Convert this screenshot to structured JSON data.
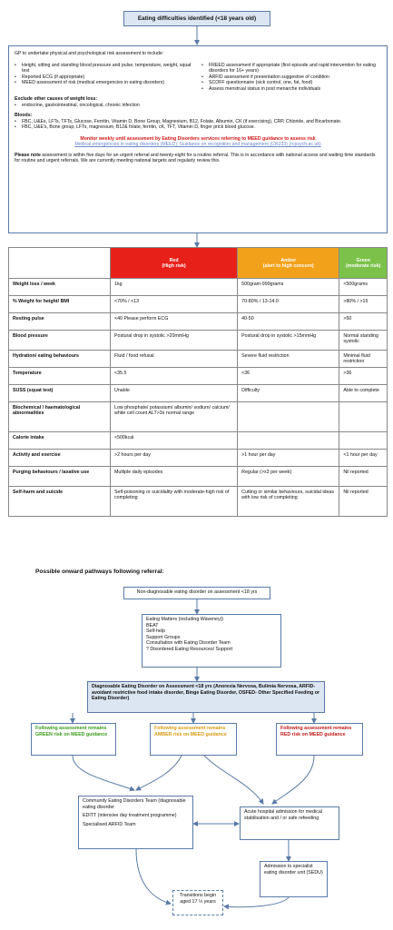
{
  "title": "Eating difficulties identified (<18 years old)",
  "gp": {
    "intro": "GP to undertake physical and psychological risk assessment to include:",
    "left_items": [
      "Height, sitting and standing blood pressure and pulse, temperature, weight, squat test",
      "Reported ECG (if appropriate)",
      "MEED assessment of risk (medical emergencies in eating disorders)"
    ],
    "right_items": [
      "FREED assessment if appropriate (first episode and rapid intervention for eating disorders for 16+ years)",
      "ARFID assessment if presentation suggestive of condition",
      "SCOFF questionnaire (sick control, one, fat, food)",
      "Assess menstrual status in post menarche individuals"
    ],
    "exclude_title": "Exclude other causes of weight loss:",
    "exclude_item": "endocrine, gastrointestinal, oncological, chronic infection",
    "bloods_title": "Bloods:",
    "bloods_item1": "FBC, U&Es, LFTs, TFTs, Glucose, Ferritin, Vitamin D, Bone Group, Magnesium, B12, Folate, Albumin, CK (if exercising), CRP, Chloride, and Bicarbonate.",
    "bloods_item2": "FBC, U&E's, Bone group, LFTs, magnesium, B12& folate, ferritin, cK, TFT, Vitamin D, finger prick blood glucose.",
    "monitor": "Monitor weekly until assessment by Eating Disorders services referring to MEED guidance to assess risk",
    "monitor_link": "Medical emergencies in eating disorders (MEED): Guidance on recognition and management (CR233) (rcpsych.ac.uk)",
    "note_bold": "Please note",
    "note_text": " assessment is within five days for an urgent referral and twenty-eight for a routine referral. This is in accordance with national access and waiting time standards for routine and urgent referrals. We are currently meeting national targets and regularly review this."
  },
  "table": {
    "headers": [
      "Red\n(High risk)",
      "Amber\n(alert to high concern)",
      "Green\n(moderate risk)"
    ],
    "red_title": "Red",
    "red_sub": "(High risk)",
    "amber_title": "Amber",
    "amber_sub": "(alert to high concern)",
    "green_title": "Green",
    "green_sub": "(moderate risk)",
    "rows": [
      {
        "label": "Weight loss / week",
        "red": "1kg",
        "amber": "500gram-999grams",
        "green": "<500grams"
      },
      {
        "label": "% Weight for height/ BMI",
        "red": "<70% / <13",
        "amber": "70-80% / 13-14.0",
        "green": ">80% / >15"
      },
      {
        "label": "Resting pulse",
        "red": "<40 Please perform ECG",
        "amber": "40-50",
        "green": ">50"
      },
      {
        "label": "Blood pressure",
        "red": "Postural drop in systolic >20mmHg",
        "amber": "Postural drop in systolic >15mmHg",
        "green": "Normal standing systolic"
      },
      {
        "label": "Hydration/ eating behaviours",
        "red": "Fluid / food refusal",
        "amber": "Severe fluid restriction",
        "green": "Minimal fluid restriction"
      },
      {
        "label": "Temperature",
        "red": "<35.5",
        "amber": "<36",
        "green": ">36"
      },
      {
        "label": "SUSS (squat test)",
        "red": "Unable",
        "amber": "Difficulty",
        "green": "Able to complete"
      },
      {
        "label": "Biochemical / haematological abnormalities",
        "red": "Low phosphate/ potassium/ albumin/ sodium/ calcium/ white cell count ALT>3x normal range",
        "amber": "",
        "green": ""
      },
      {
        "label": "Calorie intake",
        "red": "<500kcal",
        "amber": "",
        "green": ""
      },
      {
        "label": "Activity and exercise",
        "red": ">2 hours per day",
        "amber": ">1 hour per day",
        "green": "<1 hour per day"
      },
      {
        "label": "Purging behaviours / laxative use",
        "red": "Multiple daily episodes",
        "amber": "Regular (>x3 per week)",
        "green": "Nil reported"
      },
      {
        "label": "Self-harm and suicide",
        "red": "Self-poisoning or suicidality with moderate-high risk of completing",
        "amber": "Cutting or similar behaviours, suicidal ideas with low risk of completing",
        "green": "Nil reported"
      }
    ]
  },
  "pathways": {
    "title": "Possible onward pathways following referral:",
    "non_diag": "Non-diagnosable eating disorder on assessment <18 yrs",
    "support_lines": [
      "Eating Matters (including Waveney))",
      "BEAT",
      "Self-help",
      "Support Groups",
      "Consultation with Eating Disorder Team",
      "? Disordered Eating Resources/ Support"
    ],
    "diagnosable": "Diagnosable Eating Disorder on Assessment <18 yrs (Anorexia Nervosa, Bulimia Nervosa, ARFID- avoidant restrictive food intake disorder, Binge Eating Disorder, OSFED- Other Specified Feeding or Eating Disorder)",
    "green_box": "Following assessment remains GREEN risk on MEED guidance",
    "amber_box": "Following assessment remains AMBER risk on MEED guidance",
    "red_box": "Following assessment remains RED risk on MEED guidance",
    "community_lines": [
      "Community Eating Disorders Team (diagnosable eating disorder",
      "EDITT (intensive day treatment programme)",
      "Specialised ARFID Team"
    ],
    "acute": "Acute hospital admission for medical stabilisation and / or safe refeeding",
    "sedu": "Admission to specialist eating disorder unit (SEDU)",
    "transitions": "Transitions begin aged 17 ½ years"
  },
  "colors": {
    "red": "#e8201a",
    "amber": "#f2a21a",
    "green": "#7cc24a",
    "box_border": "#5a7aa6",
    "title_fill": "#dce6f2"
  }
}
